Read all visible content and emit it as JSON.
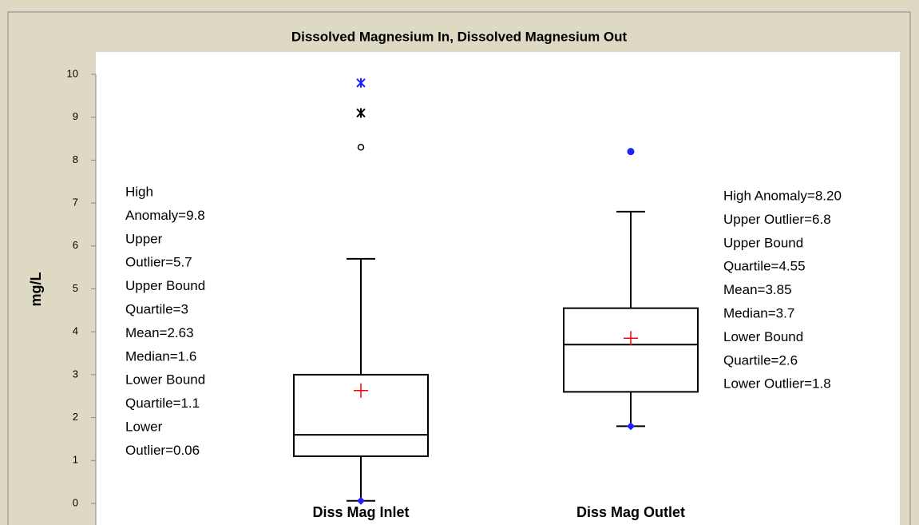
{
  "chart_data": {
    "type": "box",
    "title": "Dissolved Magnesium In, Dissolved Magnesium Out",
    "ylabel": "mg/L",
    "ylim": [
      0,
      10
    ],
    "yticks": [
      0,
      1,
      2,
      3,
      4,
      5,
      6,
      7,
      8,
      9,
      10
    ],
    "categories": [
      "Diss Mag Inlet",
      "Diss Mag Outlet"
    ],
    "box_color": "#000000",
    "mean_color": "#ff0000",
    "low_marker_color": "#1f1fff",
    "boxes": [
      {
        "whisker_low": 0.06,
        "q1": 1.1,
        "median": 1.6,
        "q3": 3,
        "whisker_high": 5.7,
        "mean": 2.63,
        "outliers": [
          {
            "value": 8.3,
            "marker": "circle",
            "color": "#000000"
          },
          {
            "value": 9.1,
            "marker": "star",
            "color": "#000000"
          },
          {
            "value": 9.8,
            "marker": "star",
            "color": "#1f1fff"
          }
        ]
      },
      {
        "whisker_low": 1.8,
        "q1": 2.6,
        "median": 3.7,
        "q3": 4.55,
        "whisker_high": 6.8,
        "mean": 3.85,
        "outliers": [
          {
            "value": 8.2,
            "marker": "dot",
            "color": "#1f1fff"
          }
        ]
      }
    ],
    "annotations": [
      [
        "High",
        "Anomaly=9.8",
        "Upper",
        "Outlier=5.7",
        "Upper Bound",
        "Quartile=3",
        "Mean=2.63",
        "Median=1.6",
        "Lower Bound",
        "Quartile=1.1",
        "Lower",
        "Outlier=0.06"
      ],
      [
        "High Anomaly=8.20",
        "Upper Outlier=6.8",
        "Upper Bound",
        "Quartile=4.55",
        "Mean=3.85",
        "Median=3.7",
        "Lower Bound",
        "Quartile=2.6",
        "Lower Outlier=1.8"
      ]
    ]
  }
}
